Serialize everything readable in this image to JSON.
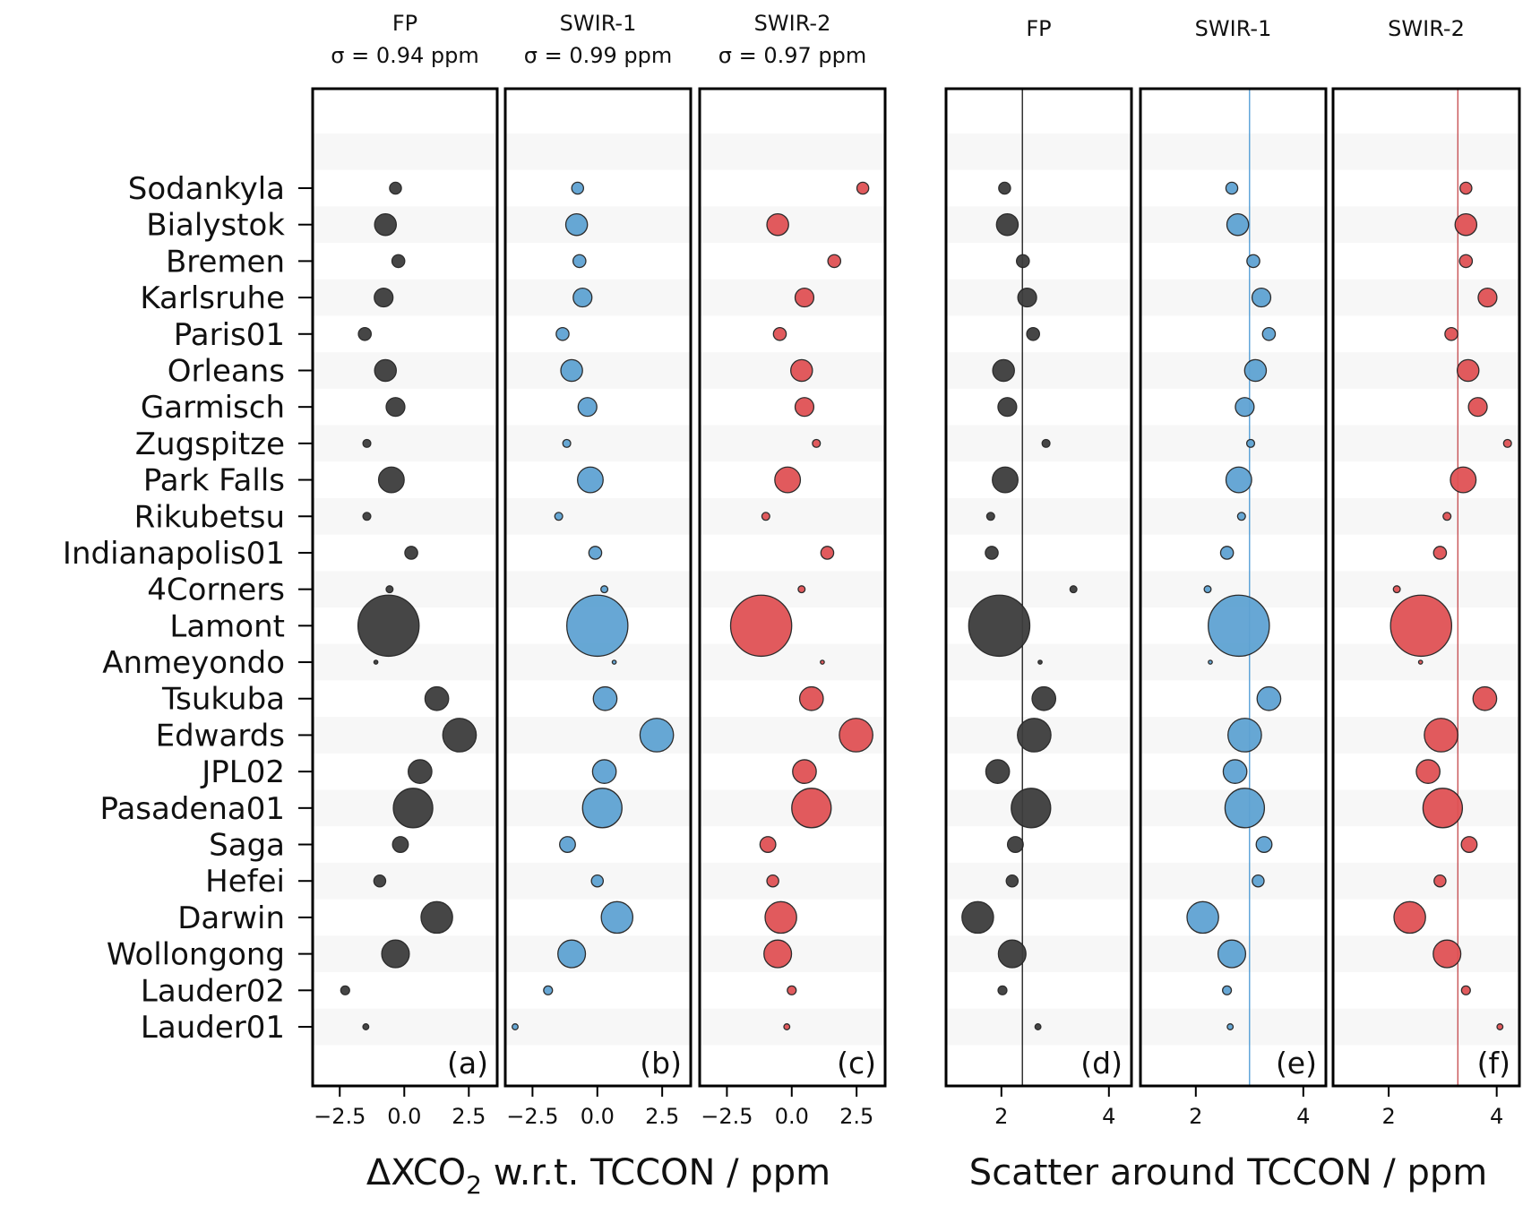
{
  "chart_data": {
    "type": "scatter",
    "stations": [
      "Sodankyla",
      "Bialystok",
      "Bremen",
      "Karlsruhe",
      "Paris01",
      "Orleans",
      "Garmisch",
      "Zugspitze",
      "Park Falls",
      "Rikubetsu",
      "Indianapolis01",
      "4Corners",
      "Lamont",
      "Anmeyondo",
      "Tsukuba",
      "Edwards",
      "JPL02",
      "Pasadena01",
      "Saga",
      "Hefei",
      "Darwin",
      "Wollongong",
      "Lauder02",
      "Lauder01"
    ],
    "marker_weight": [
      6,
      11,
      6.5,
      9.5,
      6.5,
      11,
      9.5,
      4,
      13,
      4,
      6.5,
      3.5,
      31,
      2,
      12,
      17,
      12,
      20,
      8,
      6,
      16,
      14,
      4.5,
      3
    ],
    "groups": [
      {
        "xlabel": "ΔXCO",
        "xlabel_sub": "2",
        "xlabel_rest": " w.r.t. TCCON / ppm",
        "xlim": [
          -3.55,
          3.6
        ],
        "xticks": [
          -2.5,
          0.0,
          2.5
        ],
        "xtick_labels": [
          "−2.5",
          "0.0",
          "2.5"
        ]
      },
      {
        "xlabel": "Scatter around TCCON / ppm",
        "xlim": [
          0.97,
          4.42
        ],
        "xticks": [
          2,
          4
        ],
        "xtick_labels": [
          "2",
          "4"
        ]
      }
    ],
    "panels": [
      {
        "letter": "(a)",
        "title": "FP",
        "subtitle": "σ = 0.94 ppm",
        "group": 0,
        "color": "#3d3d3d",
        "values": [
          -0.34,
          -0.73,
          -0.23,
          -0.8,
          -1.53,
          -0.73,
          -0.34,
          -1.45,
          -0.5,
          -1.45,
          0.27,
          -0.57,
          -0.61,
          -1.1,
          1.26,
          2.14,
          0.61,
          0.34,
          -0.15,
          -0.95,
          1.26,
          -0.34,
          -2.29,
          -1.49
        ]
      },
      {
        "letter": "(b)",
        "title": "SWIR-1",
        "subtitle": "σ = 0.99 ppm",
        "group": 0,
        "color": "#5fa3d3",
        "values": [
          -0.76,
          -0.8,
          -0.69,
          -0.57,
          -1.34,
          -0.99,
          -0.38,
          -1.18,
          -0.27,
          -1.49,
          -0.08,
          0.27,
          0.0,
          0.65,
          0.3,
          2.29,
          0.27,
          0.19,
          -1.15,
          0.0,
          0.76,
          -0.99,
          -1.9,
          -3.17
        ]
      },
      {
        "letter": "(c)",
        "title": "SWIR-2",
        "subtitle": "σ = 0.97 ppm",
        "group": 0,
        "color": "#e05255",
        "values": [
          2.74,
          -0.54,
          1.64,
          0.49,
          -0.46,
          0.38,
          0.49,
          0.95,
          -0.16,
          -1.0,
          1.37,
          0.38,
          -1.18,
          1.18,
          0.76,
          2.48,
          0.49,
          0.76,
          -0.92,
          -0.73,
          -0.42,
          -0.54,
          0.0,
          -0.19
        ]
      },
      {
        "letter": "(d)",
        "title": "FP",
        "group": 1,
        "color": "#3d3d3d",
        "reference_line": 2.39,
        "values": [
          2.06,
          2.11,
          2.4,
          2.48,
          2.59,
          2.04,
          2.11,
          2.83,
          2.07,
          1.8,
          1.82,
          3.34,
          1.96,
          2.72,
          2.79,
          2.61,
          1.93,
          2.55,
          2.26,
          2.2,
          1.56,
          2.2,
          2.02,
          2.68
        ]
      },
      {
        "letter": "(e)",
        "title": "SWIR-1",
        "group": 1,
        "color": "#5fa3d3",
        "reference_line": 3.0,
        "line_color": "#3b8fd0",
        "values": [
          2.67,
          2.78,
          3.07,
          3.22,
          3.36,
          3.11,
          2.91,
          3.02,
          2.8,
          2.85,
          2.58,
          2.22,
          2.8,
          2.27,
          3.36,
          2.91,
          2.73,
          2.91,
          3.27,
          3.16,
          2.13,
          2.67,
          2.58,
          2.64
        ]
      },
      {
        "letter": "(f)",
        "title": "SWIR-2",
        "group": 1,
        "color": "#e05255",
        "reference_line": 3.28,
        "line_color": "#c0393d",
        "values": [
          3.43,
          3.43,
          3.43,
          3.83,
          3.16,
          3.47,
          3.65,
          4.2,
          3.38,
          3.08,
          2.95,
          2.15,
          2.6,
          2.59,
          3.78,
          2.97,
          2.73,
          3.0,
          3.49,
          2.95,
          2.39,
          3.08,
          3.43,
          4.06
        ]
      }
    ]
  }
}
